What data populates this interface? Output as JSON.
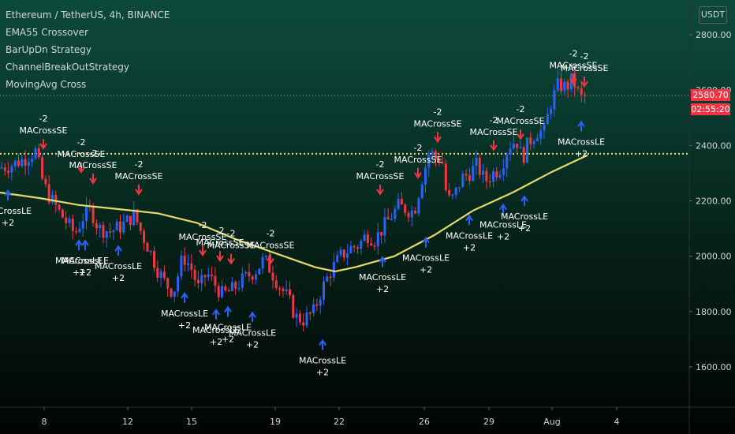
{
  "header": {
    "symbol_line": "Ethereum / TetherUS, 4h, BINANCE",
    "indicators": [
      "EMA55 Crossover",
      "BarUpDn Strategy",
      "ChannelBreakOutStrategy",
      "MovingAvg Cross"
    ],
    "currency": "USDT"
  },
  "price_axis": {
    "ticks": [
      "2800.00",
      "2600.00",
      "2400.00",
      "2200.00",
      "2000.00",
      "1800.00",
      "1600.00"
    ],
    "last_price": "2580.70",
    "countdown": "02:55:20"
  },
  "colors": {
    "up": "#2962ff",
    "down": "#f23645",
    "ema": "#e6d96b",
    "signal_text": "#ffffff",
    "level_line": "#e6d96b"
  },
  "chart_data": {
    "type": "candlestick",
    "title": "Ethereum / TetherUS, 4h, BINANCE",
    "ylim": [
      1480,
      2880
    ],
    "y_ticks": [
      1600,
      1800,
      2000,
      2200,
      2400,
      2600,
      2800
    ],
    "x_tick_labels": [
      "8",
      "12",
      "15",
      "19",
      "22",
      "26",
      "29",
      "Aug",
      "4"
    ],
    "horizontal_level": 2370,
    "last_price": 2580.7,
    "ema_path": [
      [
        0,
        2230
      ],
      [
        50,
        2210
      ],
      [
        100,
        2185
      ],
      [
        150,
        2170
      ],
      [
        200,
        2155
      ],
      [
        250,
        2120
      ],
      [
        300,
        2060
      ],
      [
        350,
        2010
      ],
      [
        400,
        1960
      ],
      [
        425,
        1945
      ],
      [
        450,
        1960
      ],
      [
        500,
        2000
      ],
      [
        550,
        2075
      ],
      [
        600,
        2165
      ],
      [
        650,
        2230
      ],
      [
        700,
        2305
      ],
      [
        745,
        2365
      ]
    ],
    "price_path": [
      [
        0,
        2320
      ],
      [
        15,
        2330
      ],
      [
        30,
        2350
      ],
      [
        45,
        2380
      ],
      [
        55,
        2260
      ],
      [
        62,
        2220
      ],
      [
        75,
        2160
      ],
      [
        85,
        2120
      ],
      [
        95,
        2080
      ],
      [
        105,
        2140
      ],
      [
        115,
        2170
      ],
      [
        125,
        2100
      ],
      [
        140,
        2090
      ],
      [
        155,
        2110
      ],
      [
        170,
        2150
      ],
      [
        180,
        2080
      ],
      [
        190,
        2020
      ],
      [
        200,
        1950
      ],
      [
        210,
        1900
      ],
      [
        220,
        1870
      ],
      [
        232,
        2000
      ],
      [
        242,
        1960
      ],
      [
        252,
        1880
      ],
      [
        262,
        1940
      ],
      [
        272,
        1900
      ],
      [
        282,
        1860
      ],
      [
        295,
        1880
      ],
      [
        310,
        1920
      ],
      [
        325,
        1950
      ],
      [
        335,
        1990
      ],
      [
        345,
        1940
      ],
      [
        355,
        1890
      ],
      [
        365,
        1850
      ],
      [
        375,
        1780
      ],
      [
        385,
        1770
      ],
      [
        398,
        1800
      ],
      [
        408,
        1880
      ],
      [
        420,
        1950
      ],
      [
        432,
        2000
      ],
      [
        445,
        2030
      ],
      [
        455,
        2040
      ],
      [
        465,
        2080
      ],
      [
        475,
        2060
      ],
      [
        485,
        2100
      ],
      [
        495,
        2140
      ],
      [
        505,
        2180
      ],
      [
        515,
        2170
      ],
      [
        525,
        2160
      ],
      [
        535,
        2280
      ],
      [
        545,
        2380
      ],
      [
        553,
        2350
      ],
      [
        560,
        2360
      ],
      [
        567,
        2200
      ],
      [
        575,
        2210
      ],
      [
        585,
        2280
      ],
      [
        595,
        2300
      ],
      [
        605,
        2330
      ],
      [
        615,
        2270
      ],
      [
        625,
        2300
      ],
      [
        635,
        2320
      ],
      [
        645,
        2400
      ],
      [
        655,
        2420
      ],
      [
        662,
        2350
      ],
      [
        670,
        2410
      ],
      [
        680,
        2450
      ],
      [
        690,
        2450
      ],
      [
        698,
        2550
      ],
      [
        708,
        2620
      ],
      [
        718,
        2610
      ],
      [
        726,
        2640
      ],
      [
        736,
        2570
      ],
      [
        744,
        2580
      ]
    ],
    "signals": [
      {
        "label": "MACrossSE",
        "value": "-2",
        "dir": "down",
        "x": 55,
        "y": 2395
      },
      {
        "label": "MACrossSE",
        "value": "-2",
        "dir": "down",
        "x": 103,
        "y": 2310
      },
      {
        "label": "MACrossSE",
        "value": "-2",
        "dir": "down",
        "x": 118,
        "y": 2270
      },
      {
        "label": "MACrossSE",
        "value": "-2",
        "dir": "down",
        "x": 176,
        "y": 2230
      },
      {
        "label": "MACrossSE",
        "value": "-2",
        "dir": "down",
        "x": 257,
        "y": 2010
      },
      {
        "label": "MACrossSE",
        "value": "-2",
        "dir": "down",
        "x": 279,
        "y": 1990
      },
      {
        "label": "MACrossSE",
        "value": "-2",
        "dir": "down",
        "x": 293,
        "y": 1980
      },
      {
        "label": "MACrossSE",
        "value": "-2",
        "dir": "down",
        "x": 343,
        "y": 1980
      },
      {
        "label": "MACrossSE",
        "value": "-2",
        "dir": "down",
        "x": 482,
        "y": 2230
      },
      {
        "label": "MACrossSE",
        "value": "-2",
        "dir": "down",
        "x": 530,
        "y": 2290
      },
      {
        "label": "MACrossSE",
        "value": "-2",
        "dir": "down",
        "x": 555,
        "y": 2420
      },
      {
        "label": "MACrossSE",
        "value": "-2",
        "dir": "down",
        "x": 626,
        "y": 2390
      },
      {
        "label": "MACrossSE",
        "value": "-2",
        "dir": "down",
        "x": 660,
        "y": 2430
      },
      {
        "label": "MACrossSE",
        "value": "-2",
        "dir": "down",
        "x": 727,
        "y": 2630
      },
      {
        "label": "MACrossSE",
        "value": "-2",
        "dir": "down",
        "x": 741,
        "y": 2620
      },
      {
        "label": "MACrossLE",
        "value": "+2",
        "dir": "up",
        "x": 10,
        "y": 2230
      },
      {
        "label": "MACrossLE",
        "value": "+2",
        "dir": "up",
        "x": 100,
        "y": 2050
      },
      {
        "label": "MACrossLE",
        "value": "+2",
        "dir": "up",
        "x": 108,
        "y": 2050
      },
      {
        "label": "MACrossLE",
        "value": "+2",
        "dir": "up",
        "x": 150,
        "y": 2030
      },
      {
        "label": "MACrossLE",
        "value": "+2",
        "dir": "up",
        "x": 234,
        "y": 1860
      },
      {
        "label": "MACrossLE",
        "value": "+2",
        "dir": "up",
        "x": 274,
        "y": 1800
      },
      {
        "label": "MACrossLE",
        "value": "+2",
        "dir": "up",
        "x": 289,
        "y": 1810
      },
      {
        "label": "MACrossLE",
        "value": "+2",
        "dir": "up",
        "x": 320,
        "y": 1790
      },
      {
        "label": "MACrossLE",
        "value": "+2",
        "dir": "up",
        "x": 409,
        "y": 1690
      },
      {
        "label": "MACrossLE",
        "value": "+2",
        "dir": "up",
        "x": 485,
        "y": 1990
      },
      {
        "label": "MACrossLE",
        "value": "+2",
        "dir": "up",
        "x": 540,
        "y": 2060
      },
      {
        "label": "MACrossLE",
        "value": "+2",
        "dir": "up",
        "x": 595,
        "y": 2140
      },
      {
        "label": "MACrossLE",
        "value": "+2",
        "dir": "up",
        "x": 638,
        "y": 2180
      },
      {
        "label": "MACrossLE",
        "value": "+2",
        "dir": "up",
        "x": 665,
        "y": 2210
      },
      {
        "label": "MACrossLE",
        "value": "+2",
        "dir": "up",
        "x": 737,
        "y": 2480
      }
    ]
  }
}
